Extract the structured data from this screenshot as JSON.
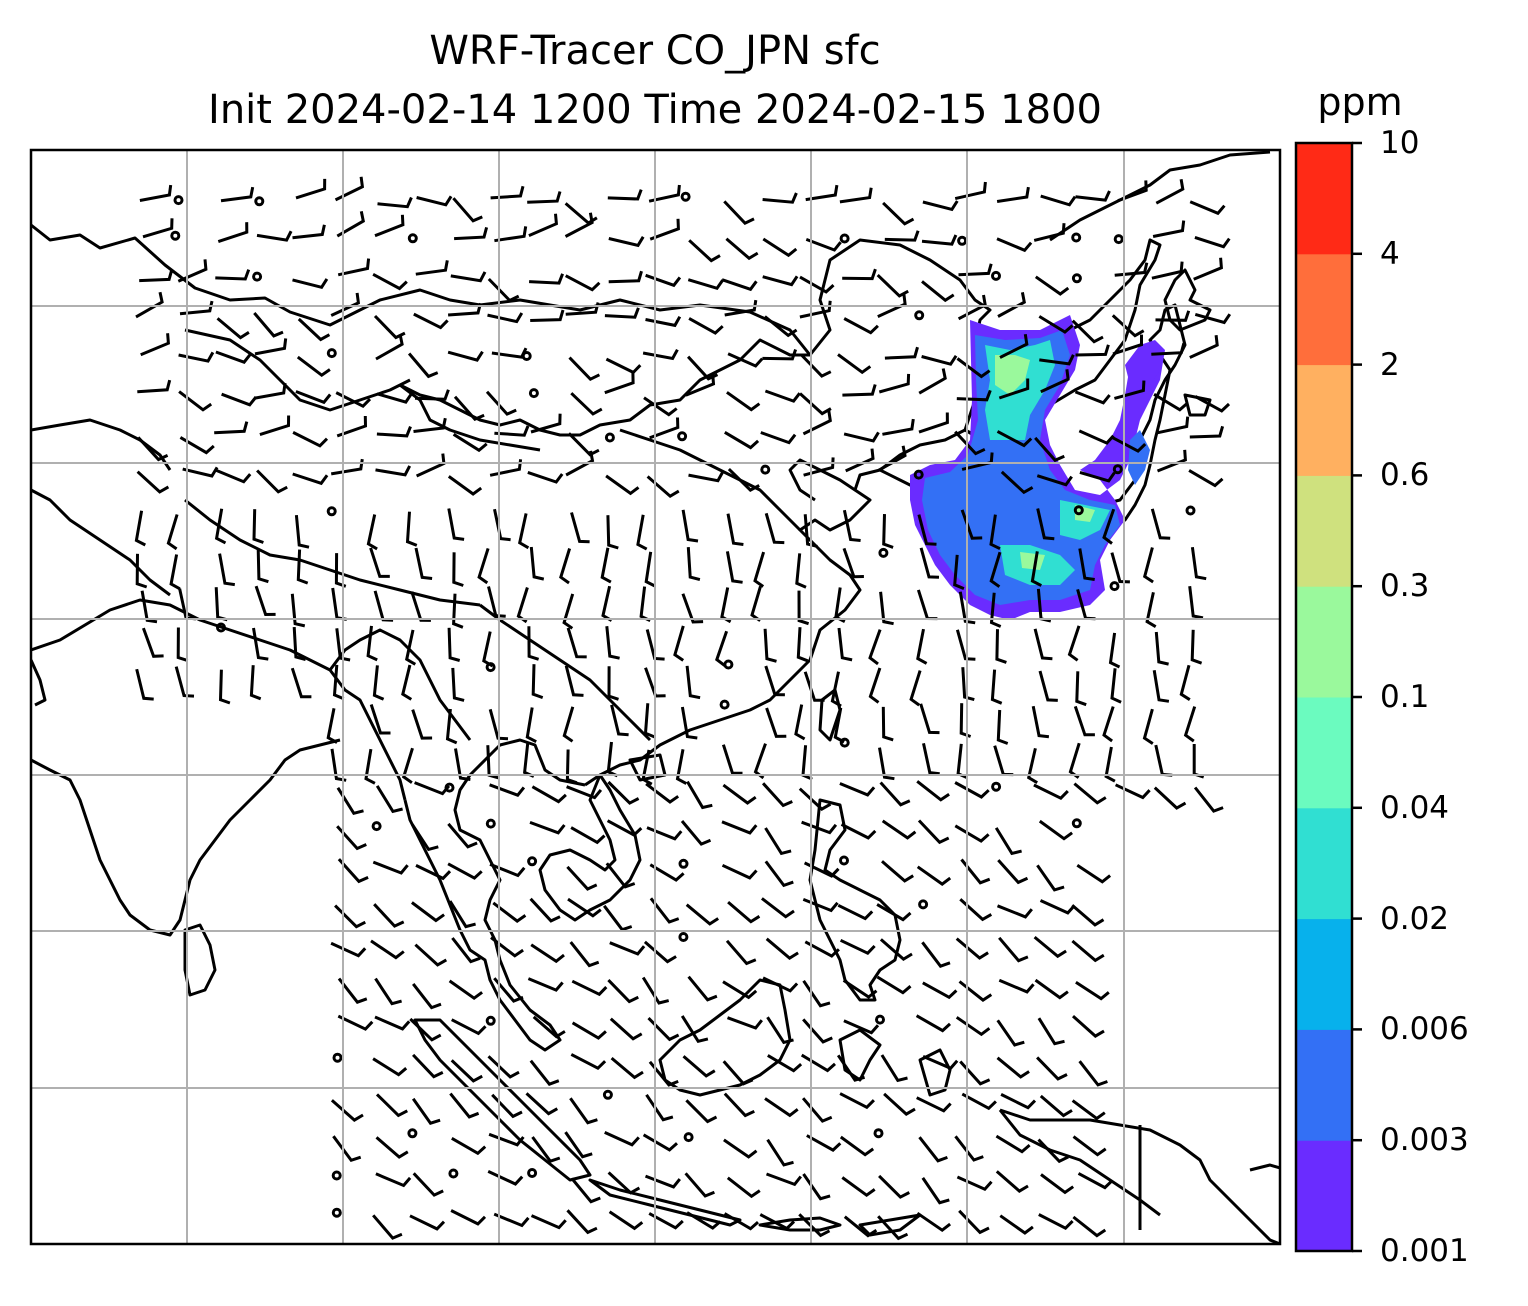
{
  "title": "WRF-Tracer CO_JPN sfc",
  "subtitle": "Init 2024-02-14 1200 Time 2024-02-15 1800",
  "colorbar": {
    "unit": "ppm",
    "levels": [
      "0.001",
      "0.003",
      "0.006",
      "0.02",
      "0.04",
      "0.1",
      "0.3",
      "0.6",
      "2",
      "4",
      "10"
    ],
    "colors": [
      "#6a2cff",
      "#3370f5",
      "#07b1ec",
      "#30dfd2",
      "#6bfbbf",
      "#9af99c",
      "#cfe17e",
      "#ffb060",
      "#ff6e3b",
      "#ff2a16"
    ]
  },
  "map": {
    "graticule": "on",
    "field": "CO tracer concentration",
    "plume_colors_used": [
      "#6a2cff",
      "#3370f5",
      "#30dfd2",
      "#9af99c"
    ],
    "overlay": "wind barbs"
  }
}
